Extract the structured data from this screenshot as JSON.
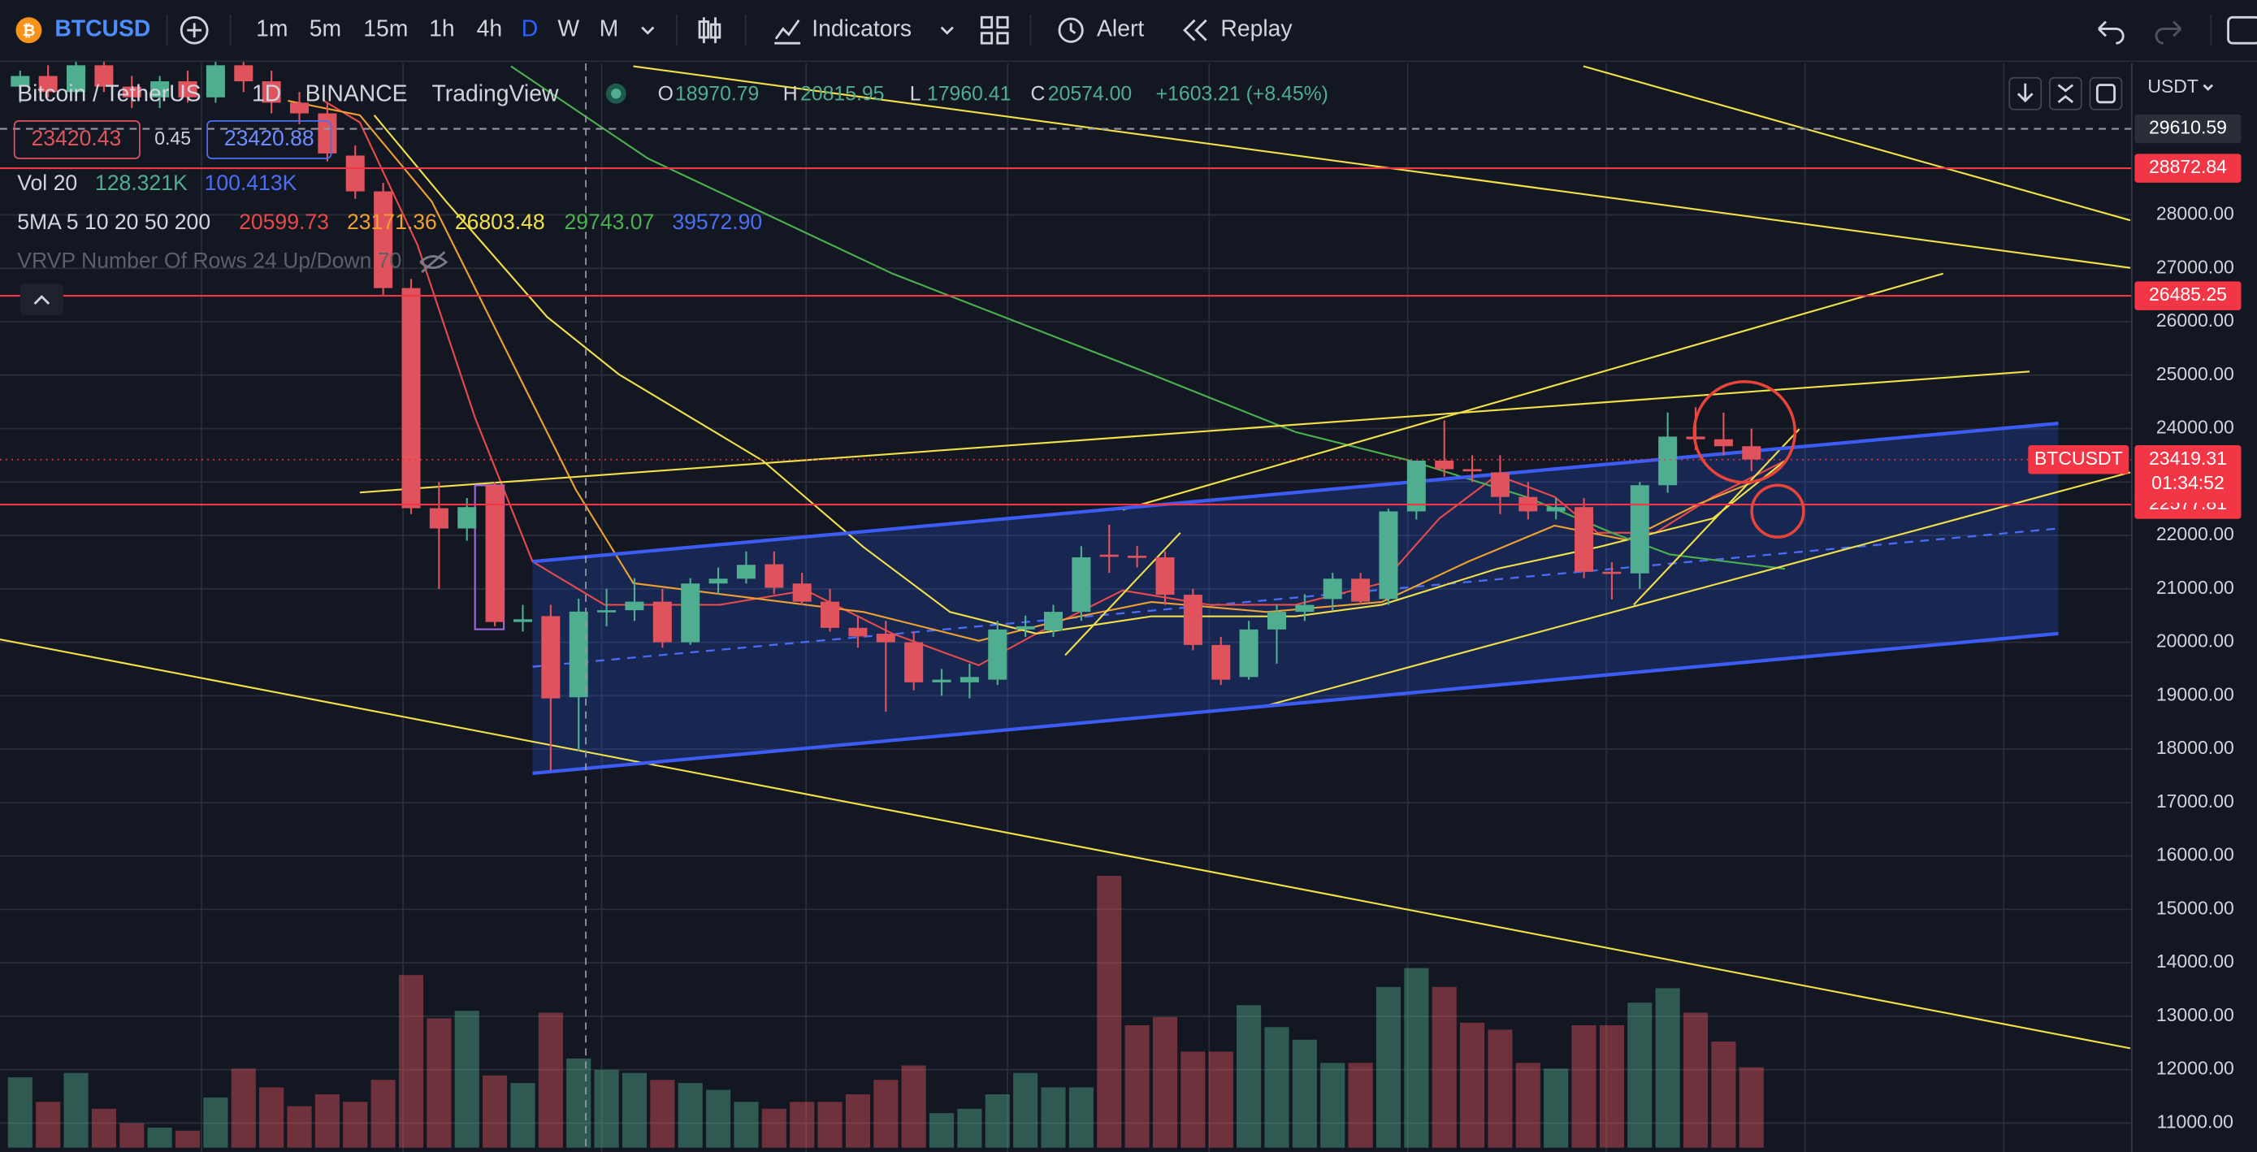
{
  "toolbar": {
    "symbol": "BTCUSD",
    "intervals": [
      "1m",
      "5m",
      "15m",
      "1h",
      "4h",
      "D",
      "W",
      "M"
    ],
    "selected_interval": 5,
    "indicators": "Indicators",
    "alert": "Alert",
    "replay": "Replay"
  },
  "legend": {
    "pair": "Bitcoin / TetherUS",
    "interval": "1D",
    "exchange": "BINANCE",
    "source": "TradingView",
    "ohlc": [
      {
        "label": "O",
        "value": "18970.79"
      },
      {
        "label": "H",
        "value": "20815.95"
      },
      {
        "label": "L",
        "value": "17960.41"
      },
      {
        "label": "C",
        "value": "20574.00"
      }
    ],
    "change": "+1603.21 (+8.45%)",
    "bid": "23420.43",
    "spread": "0.45",
    "ask": "23420.88",
    "volume": {
      "name": "Vol 20",
      "values": [
        "128.321K",
        "100.413K"
      ]
    },
    "ma": {
      "name": "5MA 5 10 20 50 200",
      "values": [
        "20599.73",
        "23171.36",
        "26803.48",
        "29743.07",
        "39572.90"
      ]
    },
    "vrvp": "VRVP Number Of Rows 24 Up/Down 70"
  },
  "chart_data": {
    "type": "candlestick",
    "currency": "USDT",
    "open": [
      30400,
      30600,
      30300,
      30800,
      30400,
      30200,
      30500,
      30200,
      30800,
      30500,
      30100,
      29900,
      29110,
      28440,
      26630,
      22510,
      22130,
      22940,
      20380,
      20490,
      18970.79,
      20570,
      20600,
      20760,
      20000,
      21100,
      21190,
      21460,
      21100,
      20760,
      20270,
      20160,
      20000,
      19250,
      19250,
      19300,
      20240,
      20220,
      20570,
      21640,
      21620,
      21590,
      20890,
      19950,
      19350,
      20240,
      20570,
      20810,
      21190,
      20810,
      22450,
      23400,
      23240,
      23180,
      22720,
      22450,
      22530,
      21320,
      21290,
      22940,
      23850,
      23800,
      23670
    ],
    "high": [
      30700,
      30800,
      30900,
      30900,
      30600,
      30600,
      30700,
      30900,
      30900,
      30700,
      30300,
      30100,
      29300,
      28600,
      26800,
      23000,
      22700,
      23000,
      20700,
      20700,
      20815.95,
      21000,
      21200,
      21000,
      21200,
      21400,
      21700,
      21700,
      21300,
      21000,
      20500,
      20400,
      20200,
      19500,
      19600,
      20400,
      20500,
      20700,
      21800,
      22200,
      21800,
      21700,
      21000,
      20100,
      20400,
      20700,
      20900,
      21300,
      21300,
      22500,
      23400,
      24150,
      23500,
      23500,
      23000,
      22700,
      22700,
      21500,
      23000,
      24300,
      24400,
      24300,
      24000
    ],
    "low": [
      30100,
      30200,
      30200,
      30300,
      30000,
      30000,
      30100,
      30100,
      30300,
      29900,
      29700,
      29000,
      28300,
      26500,
      22400,
      21000,
      21900,
      20300,
      20200,
      17600,
      17960.41,
      20300,
      20400,
      19900,
      19950,
      20900,
      21100,
      20900,
      20700,
      20200,
      19900,
      18700,
      19100,
      19000,
      18950,
      19200,
      20100,
      20100,
      20400,
      21300,
      21400,
      20700,
      19850,
      19200,
      19300,
      19600,
      20400,
      20600,
      20700,
      20700,
      22300,
      23100,
      23000,
      22400,
      22300,
      22300,
      21200,
      20800,
      21000,
      22800,
      23600,
      23500,
      23200
    ],
    "close": [
      30600,
      30300,
      30800,
      30400,
      30200,
      30500,
      30200,
      30800,
      30500,
      30100,
      29900,
      29150,
      28440,
      26630,
      22510,
      22130,
      22530,
      20380,
      20430,
      18950,
      20574,
      20600,
      20760,
      20000,
      21100,
      21190,
      21450,
      21020,
      20760,
      20270,
      20110,
      20000,
      19250,
      19300,
      19350,
      20240,
      20300,
      20570,
      21590,
      21610,
      21600,
      20890,
      19950,
      19300,
      20240,
      20570,
      20700,
      21190,
      20760,
      22450,
      23400,
      23240,
      23210,
      22720,
      22450,
      22530,
      21320,
      21290,
      22940,
      23850,
      23800,
      23670,
      23420
    ],
    "volume": [
      112,
      73,
      119,
      62,
      39,
      32,
      27,
      80,
      126,
      96,
      66,
      85,
      73,
      108,
      275,
      206,
      218,
      115,
      103,
      215,
      142,
      124,
      119,
      108,
      103,
      92,
      73,
      62,
      73,
      73,
      85,
      108,
      131,
      55,
      62,
      85,
      119,
      96,
      96,
      433,
      195,
      208,
      153,
      153,
      227,
      192,
      172,
      135,
      135,
      256,
      286,
      256,
      199,
      188,
      135,
      126,
      195,
      195,
      231,
      254,
      215,
      169,
      128
    ],
    "volume_lim": [
      0,
      500
    ],
    "ylim": [
      10540,
      30836
    ],
    "yticks": [
      {
        "value": 11000,
        "label": "11000.00"
      },
      {
        "value": 12000,
        "label": "12000.00"
      },
      {
        "value": 13000,
        "label": "13000.00"
      },
      {
        "value": 14000,
        "label": "14000.00"
      },
      {
        "value": 15000,
        "label": "15000.00"
      },
      {
        "value": 16000,
        "label": "16000.00"
      },
      {
        "value": 17000,
        "label": "17000.00"
      },
      {
        "value": 18000,
        "label": "18000.00"
      },
      {
        "value": 19000,
        "label": "19000.00"
      },
      {
        "value": 20000,
        "label": "20000.00"
      },
      {
        "value": 21000,
        "label": "21000.00"
      },
      {
        "value": 22000,
        "label": "22000.00"
      },
      {
        "value": 23000,
        "label": "23000.00"
      },
      {
        "value": 24000,
        "label": "24000.00"
      },
      {
        "value": 25000,
        "label": "25000.00"
      },
      {
        "value": 26000,
        "label": "26000.00"
      },
      {
        "value": 27000,
        "label": "27000.00"
      },
      {
        "value": 28000,
        "label": "28000.00"
      }
    ],
    "price_lines": [
      {
        "value": 29610.59,
        "color": "#9598a1",
        "style": "dashed"
      },
      {
        "value": 28872.84,
        "color": "#f23645",
        "style": "solid"
      },
      {
        "value": 26485.25,
        "color": "#f23645",
        "style": "solid"
      },
      {
        "value": 22577.81,
        "color": "#f23645",
        "style": "solid"
      }
    ],
    "last_price": {
      "value": 23419.31,
      "symbol": "BTCUSDT",
      "countdown": "01:34:52",
      "color": "#f23645"
    },
    "up_color": "#4fae8f",
    "down_color": "#e0535d",
    "grid": true
  }
}
